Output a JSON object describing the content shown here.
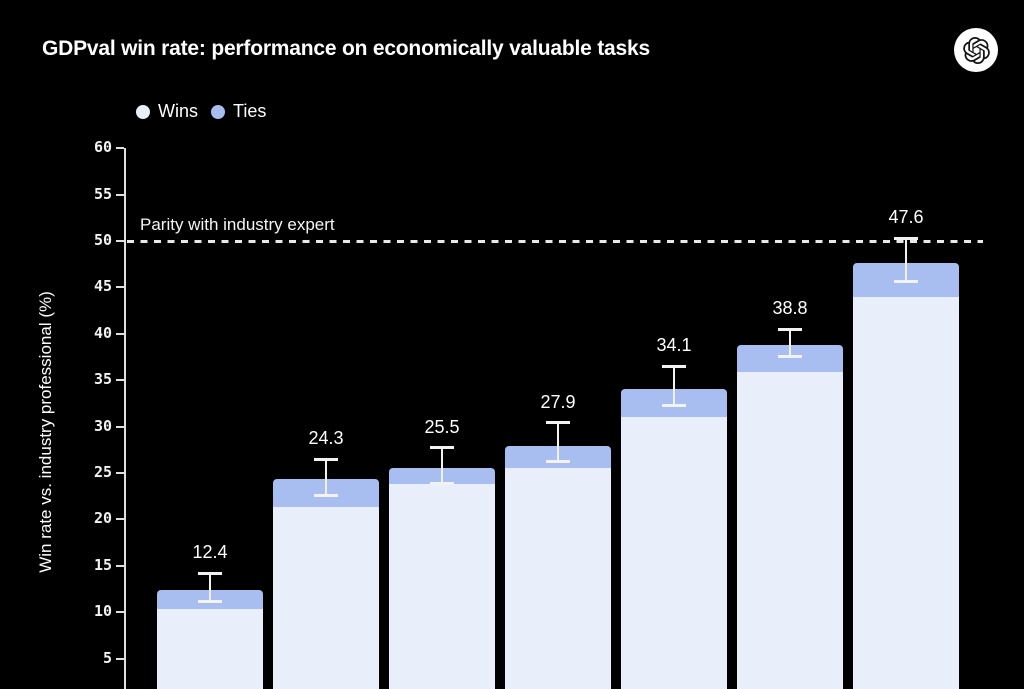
{
  "header": {
    "title": "GDPval win rate: performance on economically valuable tasks",
    "logo": "openai-logo"
  },
  "colors": {
    "background": "#000000",
    "wins": "#e9eefb",
    "ties": "#a8bdf0",
    "axis": "#e0e0e0",
    "error_bar": "#f2f2f2",
    "dash_line": "#e8e8e8",
    "text": "#ffffff"
  },
  "chart_data": {
    "type": "bar",
    "stacked": true,
    "title": "GDPval win rate: performance on economically valuable tasks",
    "ylabel": "Win rate vs. industry professional (%)",
    "yticks": [
      60,
      55,
      50,
      45,
      40,
      35,
      30,
      25,
      20,
      15,
      10,
      5
    ],
    "ylim_visible_top": 60,
    "grid": false,
    "legend_position": "top-left",
    "legend": [
      {
        "name": "Wins",
        "color": "#e9eefb"
      },
      {
        "name": "Ties",
        "color": "#a8bdf0"
      }
    ],
    "parity_line": {
      "value": 50,
      "label": "Parity with industry expert",
      "style": "dashed"
    },
    "note_categories": "x-axis category labels are cropped out of the visible screenshot",
    "bars": [
      {
        "label": "12.4",
        "total": 12.4,
        "wins": 10.3,
        "ties": 2.1,
        "err_lo": 11.2,
        "err_hi": 14.2
      },
      {
        "label": "24.3",
        "total": 24.3,
        "wins": 21.3,
        "ties": 3.0,
        "err_lo": 22.6,
        "err_hi": 26.5
      },
      {
        "label": "25.5",
        "total": 25.5,
        "wins": 23.8,
        "ties": 1.7,
        "err_lo": 23.9,
        "err_hi": 27.7
      },
      {
        "label": "27.9",
        "total": 27.9,
        "wins": 25.5,
        "ties": 2.4,
        "err_lo": 26.2,
        "err_hi": 30.4
      },
      {
        "label": "34.1",
        "total": 34.1,
        "wins": 31.0,
        "ties": 3.1,
        "err_lo": 32.3,
        "err_hi": 36.5
      },
      {
        "label": "38.8",
        "total": 38.8,
        "wins": 35.9,
        "ties": 2.9,
        "err_lo": 37.6,
        "err_hi": 40.5
      },
      {
        "label": "47.6",
        "total": 47.6,
        "wins": 44.0,
        "ties": 3.6,
        "err_lo": 45.6,
        "err_hi": 50.3
      }
    ]
  }
}
